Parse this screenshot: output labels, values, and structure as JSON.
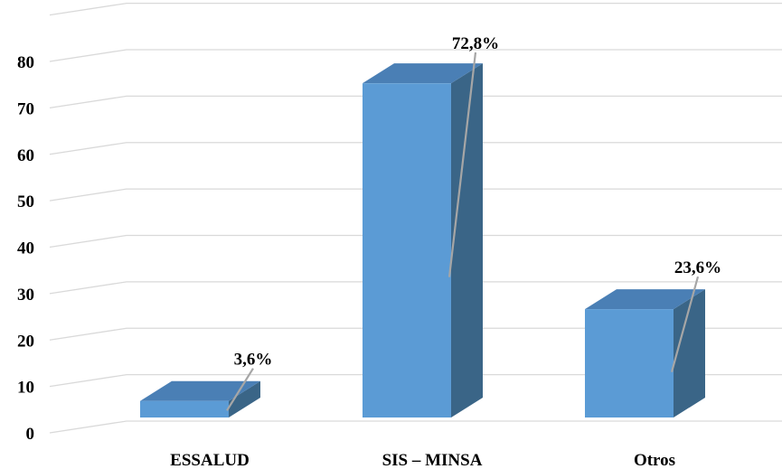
{
  "chart_data": {
    "type": "bar",
    "style": "3d-column",
    "categories": [
      "ESSALUD",
      "SIS – MINSA",
      "Otros"
    ],
    "values": [
      3.6,
      72.8,
      23.6
    ],
    "data_labels": [
      "3,6%",
      "72,8%",
      "23,6%"
    ],
    "yticks": [
      "0",
      "10",
      "20",
      "30",
      "40",
      "50",
      "60",
      "70",
      "80"
    ],
    "ylim": [
      0,
      80
    ],
    "grid": true,
    "legend": "none",
    "colors": {
      "front": "#5b9bd5",
      "top": "#4a7fb5",
      "side": "#3a6587",
      "grid": "#d9d9d9",
      "leader": "#a6a6a6"
    }
  }
}
